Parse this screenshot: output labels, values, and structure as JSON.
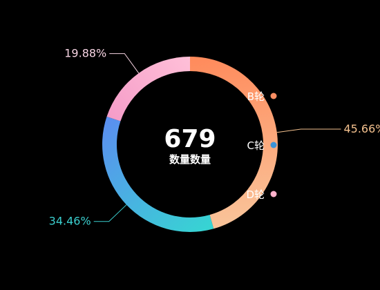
{
  "chart_data": {
    "type": "pie",
    "variant": "donut",
    "center_value": "679",
    "center_label": "数量数量",
    "slices": [
      {
        "name": "B轮",
        "percent": 45.66,
        "label": "45.66%",
        "gradient": [
          "#ff8a5b",
          "#f9c49a"
        ],
        "label_color": "#f5c28f",
        "legend_dot": "#fb8e63"
      },
      {
        "name": "C轮",
        "percent": 34.46,
        "label": "34.46%",
        "gradient": [
          "#36d6d2",
          "#5b8ef0"
        ],
        "label_color": "#3bcfcf",
        "legend_dot": "#3b93d8"
      },
      {
        "name": "D轮",
        "percent": 19.88,
        "label": "19.88%",
        "gradient": [
          "#f59cc8",
          "#ffc0d8"
        ],
        "label_color": "#f7d4e3",
        "legend_dot": "#ffb2cc"
      }
    ],
    "legend": [
      "B轮",
      "C轮",
      "D轮"
    ],
    "legend_position": "right-inside"
  }
}
